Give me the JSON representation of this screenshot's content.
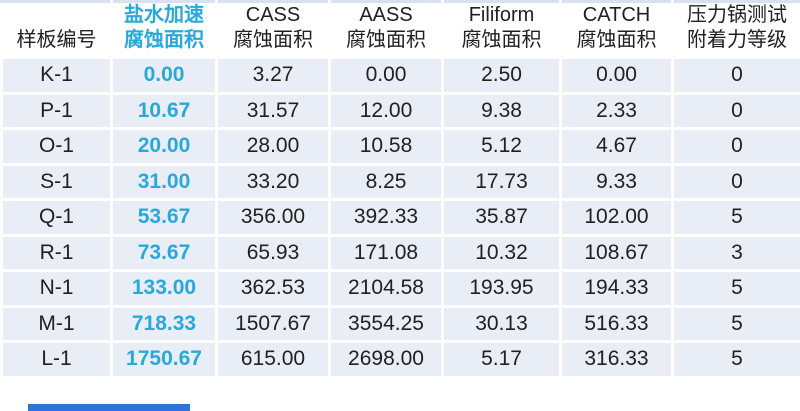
{
  "table": {
    "columns": [
      {
        "line1": "",
        "line2": "样板编号"
      },
      {
        "line1": "盐水加速",
        "line2": "腐蚀面积",
        "accent": true
      },
      {
        "line1": "CASS",
        "line2": "腐蚀面积"
      },
      {
        "line1": "AASS",
        "line2": "腐蚀面积"
      },
      {
        "line1": "Filiform",
        "line2": "腐蚀面积"
      },
      {
        "line1": "CATCH",
        "line2": "腐蚀面积"
      },
      {
        "line1": "压力锅测试",
        "line2": "附着力等级"
      }
    ],
    "rows": [
      [
        "K-1",
        "0.00",
        "3.27",
        "0.00",
        "2.50",
        "0.00",
        "0"
      ],
      [
        "P-1",
        "10.67",
        "31.57",
        "12.00",
        "9.38",
        "2.33",
        "0"
      ],
      [
        "O-1",
        "20.00",
        "28.00",
        "10.58",
        "5.12",
        "4.67",
        "0"
      ],
      [
        "S-1",
        "31.00",
        "33.20",
        "8.25",
        "17.73",
        "9.33",
        "0"
      ],
      [
        "Q-1",
        "53.67",
        "356.00",
        "392.33",
        "35.87",
        "102.00",
        "5"
      ],
      [
        "R-1",
        "73.67",
        "65.93",
        "171.08",
        "10.32",
        "108.67",
        "3"
      ],
      [
        "N-1",
        "133.00",
        "362.53",
        "2104.58",
        "193.95",
        "194.33",
        "5"
      ],
      [
        "M-1",
        "718.33",
        "1507.67",
        "3554.25",
        "30.13",
        "516.33",
        "5"
      ],
      [
        "L-1",
        "1750.67",
        "615.00",
        "2698.00",
        "5.17",
        "316.33",
        "5"
      ]
    ]
  },
  "colors": {
    "accent_cyan": "#29A8DC",
    "row_bg": "#E9EDF6",
    "header_bg": "#FFFFFF",
    "text": "#212121",
    "grid_white": "#FFFFFF",
    "header_top_line": "#D9E0EF",
    "bottom_bar_blue": "#2E74D8"
  }
}
